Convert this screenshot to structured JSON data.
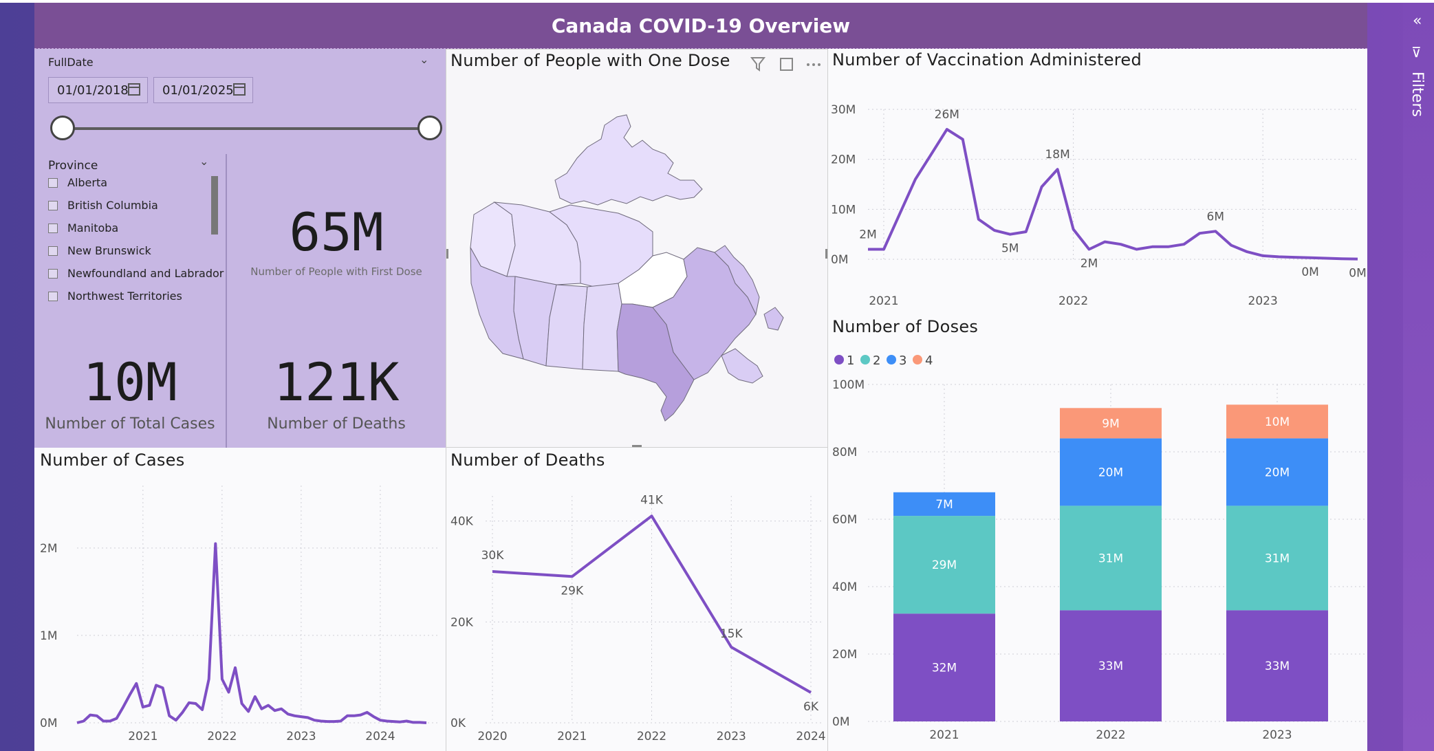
{
  "dashboard": {
    "title": "Canada COVID-19 Overview",
    "filters_pane_label": "Filters"
  },
  "date_slicer": {
    "label": "FullDate",
    "start_date": "01/01/2018",
    "end_date": "01/01/2025"
  },
  "province_slicer": {
    "label": "Province",
    "items": [
      "Alberta",
      "British Columbia",
      "Manitoba",
      "New Brunswick",
      "Newfoundland and Labrador",
      "Northwest Territories"
    ]
  },
  "kpis": {
    "first_dose_value": "65M",
    "first_dose_label": "Number of People with First Dose",
    "cases_value": "10M",
    "cases_label": "Number of Total Cases",
    "deaths_value": "121K",
    "deaths_label": "Number of Deaths"
  },
  "map": {
    "title": "Number of People with One Dose"
  },
  "colors": {
    "accent": "#7e4fc4",
    "dose1": "#7e4fc4",
    "dose2": "#5cc8c4",
    "dose3": "#3d8ef7",
    "dose4": "#fa9878"
  },
  "chart_data": [
    {
      "type": "line",
      "title": "Number of Vaccination Administered",
      "y_ticks": [
        "30M",
        "20M",
        "10M",
        "0M"
      ],
      "x_ticks": [
        "2021",
        "2022",
        "2023"
      ],
      "ylim": [
        0,
        30000000
      ],
      "points": [
        {
          "x": "2020-12",
          "y": 2000000
        },
        {
          "x": "2021-01",
          "y": 2000000
        },
        {
          "x": "2021-02",
          "y": 9000000
        },
        {
          "x": "2021-03",
          "y": 16000000
        },
        {
          "x": "2021-04",
          "y": 21000000
        },
        {
          "x": "2021-05",
          "y": 26000000
        },
        {
          "x": "2021-06",
          "y": 24000000
        },
        {
          "x": "2021-07",
          "y": 8000000
        },
        {
          "x": "2021-08",
          "y": 5800000
        },
        {
          "x": "2021-09",
          "y": 5000000
        },
        {
          "x": "2021-10",
          "y": 5500000
        },
        {
          "x": "2021-11",
          "y": 14500000
        },
        {
          "x": "2021-12",
          "y": 18000000
        },
        {
          "x": "2022-01",
          "y": 6000000
        },
        {
          "x": "2022-02",
          "y": 2000000
        },
        {
          "x": "2022-03",
          "y": 3500000
        },
        {
          "x": "2022-04",
          "y": 3000000
        },
        {
          "x": "2022-05",
          "y": 2000000
        },
        {
          "x": "2022-06",
          "y": 2500000
        },
        {
          "x": "2022-07",
          "y": 2500000
        },
        {
          "x": "2022-08",
          "y": 3000000
        },
        {
          "x": "2022-09",
          "y": 5200000
        },
        {
          "x": "2022-10",
          "y": 5600000
        },
        {
          "x": "2022-11",
          "y": 2800000
        },
        {
          "x": "2022-12",
          "y": 1500000
        },
        {
          "x": "2023-01",
          "y": 700000
        },
        {
          "x": "2023-02",
          "y": 500000
        },
        {
          "x": "2023-03",
          "y": 400000
        },
        {
          "x": "2023-04",
          "y": 300000
        },
        {
          "x": "2023-05",
          "y": 200000
        },
        {
          "x": "2023-06",
          "y": 100000
        },
        {
          "x": "2023-07",
          "y": 50000
        }
      ],
      "data_labels": [
        {
          "x": "2020-12",
          "text": "2M"
        },
        {
          "x": "2021-05",
          "text": "26M"
        },
        {
          "x": "2021-09",
          "text": "5M"
        },
        {
          "x": "2021-12",
          "text": "18M"
        },
        {
          "x": "2022-02",
          "text": "2M"
        },
        {
          "x": "2022-10",
          "text": "6M"
        },
        {
          "x": "2023-04",
          "text": "0M"
        },
        {
          "x": "2023-07",
          "text": "0M"
        }
      ]
    },
    {
      "type": "bar",
      "stacked": true,
      "title": "Number of Doses",
      "legend": [
        "1",
        "2",
        "3",
        "4"
      ],
      "categories": [
        "2021",
        "2022",
        "2023"
      ],
      "y_ticks": [
        "100M",
        "80M",
        "60M",
        "40M",
        "20M",
        "0M"
      ],
      "ylim": [
        0,
        100000000
      ],
      "series": [
        {
          "name": "1",
          "values": [
            32000000,
            33000000,
            33000000
          ],
          "labels": [
            "32M",
            "33M",
            "33M"
          ]
        },
        {
          "name": "2",
          "values": [
            29000000,
            31000000,
            31000000
          ],
          "labels": [
            "29M",
            "31M",
            "31M"
          ]
        },
        {
          "name": "3",
          "values": [
            7000000,
            20000000,
            20000000
          ],
          "labels": [
            "7M",
            "20M",
            "20M"
          ]
        },
        {
          "name": "4",
          "values": [
            0,
            9000000,
            10000000
          ],
          "labels": [
            "",
            "9M",
            "10M"
          ]
        }
      ]
    },
    {
      "type": "line",
      "title": "Number of Cases",
      "y_ticks": [
        "2M",
        "1M",
        "0M"
      ],
      "x_ticks": [
        "2021",
        "2022",
        "2023",
        "2024"
      ],
      "ylim": [
        0,
        2400000
      ],
      "points": [
        {
          "x": "2020-03",
          "y": 0
        },
        {
          "x": "2020-04",
          "y": 20000
        },
        {
          "x": "2020-05",
          "y": 90000
        },
        {
          "x": "2020-06",
          "y": 80000
        },
        {
          "x": "2020-07",
          "y": 20000
        },
        {
          "x": "2020-08",
          "y": 20000
        },
        {
          "x": "2020-09",
          "y": 50000
        },
        {
          "x": "2020-10",
          "y": 180000
        },
        {
          "x": "2020-11",
          "y": 320000
        },
        {
          "x": "2020-12",
          "y": 450000
        },
        {
          "x": "2021-01",
          "y": 180000
        },
        {
          "x": "2021-02",
          "y": 200000
        },
        {
          "x": "2021-03",
          "y": 430000
        },
        {
          "x": "2021-04",
          "y": 400000
        },
        {
          "x": "2021-05",
          "y": 80000
        },
        {
          "x": "2021-06",
          "y": 30000
        },
        {
          "x": "2021-07",
          "y": 120000
        },
        {
          "x": "2021-08",
          "y": 230000
        },
        {
          "x": "2021-09",
          "y": 220000
        },
        {
          "x": "2021-10",
          "y": 150000
        },
        {
          "x": "2021-11",
          "y": 500000
        },
        {
          "x": "2021-12",
          "y": 2050000
        },
        {
          "x": "2022-01",
          "y": 500000
        },
        {
          "x": "2022-02",
          "y": 350000
        },
        {
          "x": "2022-03",
          "y": 630000
        },
        {
          "x": "2022-04",
          "y": 220000
        },
        {
          "x": "2022-05",
          "y": 130000
        },
        {
          "x": "2022-06",
          "y": 300000
        },
        {
          "x": "2022-07",
          "y": 160000
        },
        {
          "x": "2022-08",
          "y": 200000
        },
        {
          "x": "2022-09",
          "y": 140000
        },
        {
          "x": "2022-10",
          "y": 160000
        },
        {
          "x": "2022-11",
          "y": 100000
        },
        {
          "x": "2022-12",
          "y": 80000
        },
        {
          "x": "2023-01",
          "y": 70000
        },
        {
          "x": "2023-02",
          "y": 60000
        },
        {
          "x": "2023-03",
          "y": 30000
        },
        {
          "x": "2023-04",
          "y": 20000
        },
        {
          "x": "2023-05",
          "y": 15000
        },
        {
          "x": "2023-06",
          "y": 15000
        },
        {
          "x": "2023-07",
          "y": 20000
        },
        {
          "x": "2023-08",
          "y": 80000
        },
        {
          "x": "2023-09",
          "y": 80000
        },
        {
          "x": "2023-10",
          "y": 90000
        },
        {
          "x": "2023-11",
          "y": 120000
        },
        {
          "x": "2023-12",
          "y": 70000
        },
        {
          "x": "2024-01",
          "y": 30000
        },
        {
          "x": "2024-02",
          "y": 20000
        },
        {
          "x": "2024-03",
          "y": 15000
        },
        {
          "x": "2024-04",
          "y": 10000
        },
        {
          "x": "2024-05",
          "y": 20000
        },
        {
          "x": "2024-06",
          "y": 5000
        },
        {
          "x": "2024-07",
          "y": 5000
        },
        {
          "x": "2024-08",
          "y": 0
        }
      ]
    },
    {
      "type": "line",
      "title": "Number of Deaths",
      "y_ticks": [
        "40K",
        "20K",
        "0K"
      ],
      "x_ticks": [
        "2020",
        "2021",
        "2022",
        "2023",
        "2024"
      ],
      "ylim": [
        0,
        45000
      ],
      "points": [
        {
          "x": "2020",
          "y": 30000,
          "label": "30K"
        },
        {
          "x": "2021",
          "y": 29000,
          "label": "29K"
        },
        {
          "x": "2022",
          "y": 41000,
          "label": "41K"
        },
        {
          "x": "2023",
          "y": 15000,
          "label": "15K"
        },
        {
          "x": "2024",
          "y": 6000,
          "label": "6K"
        }
      ]
    }
  ]
}
